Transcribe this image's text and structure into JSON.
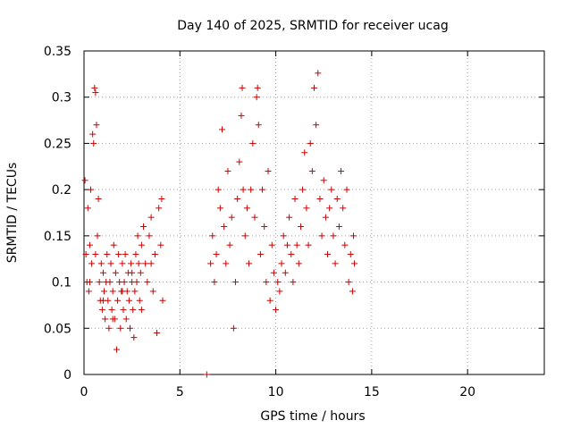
{
  "chart_data": {
    "type": "scatter",
    "title": "Day 140 of 2025, SRMTID for receiver ucag",
    "xlabel": "GPS time / hours",
    "ylabel": "SRMTID / TECUs",
    "xlim": [
      0,
      24
    ],
    "ylim": [
      0,
      0.35
    ],
    "xticks": [
      0,
      5,
      10,
      15,
      20
    ],
    "xtick_labels": [
      "0",
      "5",
      "10",
      "15",
      "20"
    ],
    "yticks": [
      0,
      0.05,
      0.1,
      0.15,
      0.2,
      0.25,
      0.3,
      0.35
    ],
    "ytick_labels": [
      "0",
      "0.05",
      "0.1",
      "0.15",
      "0.2",
      "0.25",
      "0.3",
      "0.35"
    ],
    "grid": true,
    "marker": "+",
    "color": "#cc0000",
    "series": [
      {
        "name": "SRMTID",
        "points": [
          [
            0.05,
            0.21
          ],
          [
            0.1,
            0.13
          ],
          [
            0.15,
            0.1
          ],
          [
            0.2,
            0.18
          ],
          [
            0.25,
            0.09
          ],
          [
            0.3,
            0.14
          ],
          [
            0.35,
            0.2
          ],
          [
            0.4,
            0.12
          ],
          [
            0.45,
            0.26
          ],
          [
            0.5,
            0.25
          ],
          [
            0.55,
            0.31
          ],
          [
            0.6,
            0.305
          ],
          [
            0.65,
            0.27
          ],
          [
            0.7,
            0.15
          ],
          [
            0.75,
            0.19
          ],
          [
            0.8,
            0.1
          ],
          [
            0.85,
            0.08
          ],
          [
            0.9,
            0.12
          ],
          [
            0.95,
            0.07
          ],
          [
            1.0,
            0.11
          ],
          [
            1.05,
            0.09
          ],
          [
            1.1,
            0.06
          ],
          [
            1.15,
            0.1
          ],
          [
            1.2,
            0.13
          ],
          [
            1.25,
            0.08
          ],
          [
            1.3,
            0.05
          ],
          [
            1.35,
            0.1
          ],
          [
            1.4,
            0.12
          ],
          [
            1.45,
            0.07
          ],
          [
            1.5,
            0.09
          ],
          [
            1.55,
            0.14
          ],
          [
            1.6,
            0.06
          ],
          [
            1.65,
            0.11
          ],
          [
            1.7,
            0.027
          ],
          [
            1.75,
            0.08
          ],
          [
            1.8,
            0.13
          ],
          [
            1.85,
            0.1
          ],
          [
            1.9,
            0.05
          ],
          [
            1.95,
            0.09
          ],
          [
            2.0,
            0.12
          ],
          [
            2.05,
            0.07
          ],
          [
            2.1,
            0.1
          ],
          [
            2.15,
            0.13
          ],
          [
            2.2,
            0.06
          ],
          [
            2.25,
            0.09
          ],
          [
            2.3,
            0.11
          ],
          [
            2.35,
            0.08
          ],
          [
            2.4,
            0.05
          ],
          [
            2.45,
            0.12
          ],
          [
            2.5,
            0.1
          ],
          [
            2.55,
            0.07
          ],
          [
            2.6,
            0.04
          ],
          [
            2.65,
            0.09
          ],
          [
            2.7,
            0.13
          ],
          [
            2.75,
            0.1
          ],
          [
            2.8,
            0.15
          ],
          [
            2.85,
            0.12
          ],
          [
            2.9,
            0.08
          ],
          [
            2.95,
            0.11
          ],
          [
            3.0,
            0.14
          ],
          [
            3.1,
            0.16
          ],
          [
            3.2,
            0.12
          ],
          [
            3.3,
            0.1
          ],
          [
            3.4,
            0.15
          ],
          [
            3.5,
            0.17
          ],
          [
            3.6,
            0.09
          ],
          [
            3.7,
            0.13
          ],
          [
            3.8,
            0.045
          ],
          [
            3.9,
            0.18
          ],
          [
            4.0,
            0.14
          ],
          [
            4.05,
            0.19
          ],
          [
            4.1,
            0.08
          ],
          [
            0.3,
            0.1
          ],
          [
            0.6,
            0.13
          ],
          [
            1.0,
            0.08
          ],
          [
            1.5,
            0.06
          ],
          [
            2.0,
            0.09
          ],
          [
            2.5,
            0.11
          ],
          [
            3.0,
            0.07
          ],
          [
            3.5,
            0.12
          ],
          [
            6.4,
            0.0
          ],
          [
            6.6,
            0.12
          ],
          [
            6.7,
            0.15
          ],
          [
            6.8,
            0.1
          ],
          [
            6.9,
            0.13
          ],
          [
            7.0,
            0.2
          ],
          [
            7.1,
            0.18
          ],
          [
            7.2,
            0.265
          ],
          [
            7.3,
            0.16
          ],
          [
            7.4,
            0.12
          ],
          [
            7.5,
            0.22
          ],
          [
            7.6,
            0.14
          ],
          [
            7.7,
            0.17
          ],
          [
            7.8,
            0.05
          ],
          [
            7.9,
            0.1
          ],
          [
            8.0,
            0.19
          ],
          [
            8.1,
            0.23
          ],
          [
            8.2,
            0.28
          ],
          [
            8.25,
            0.31
          ],
          [
            8.3,
            0.2
          ],
          [
            8.4,
            0.15
          ],
          [
            8.5,
            0.18
          ],
          [
            8.6,
            0.12
          ],
          [
            8.7,
            0.2
          ],
          [
            8.8,
            0.25
          ],
          [
            8.9,
            0.17
          ],
          [
            9.0,
            0.3
          ],
          [
            9.05,
            0.31
          ],
          [
            9.1,
            0.27
          ],
          [
            9.2,
            0.13
          ],
          [
            9.3,
            0.2
          ],
          [
            9.4,
            0.16
          ],
          [
            9.5,
            0.1
          ],
          [
            9.6,
            0.22
          ],
          [
            9.7,
            0.08
          ],
          [
            9.8,
            0.14
          ],
          [
            9.9,
            0.11
          ],
          [
            10.0,
            0.07
          ],
          [
            10.1,
            0.1
          ],
          [
            10.2,
            0.09
          ],
          [
            10.3,
            0.12
          ],
          [
            10.4,
            0.15
          ],
          [
            10.5,
            0.11
          ],
          [
            10.6,
            0.14
          ],
          [
            10.7,
            0.17
          ],
          [
            10.8,
            0.13
          ],
          [
            10.9,
            0.1
          ],
          [
            11.0,
            0.19
          ],
          [
            11.1,
            0.14
          ],
          [
            11.2,
            0.12
          ],
          [
            11.3,
            0.16
          ],
          [
            11.4,
            0.2
          ],
          [
            11.5,
            0.24
          ],
          [
            11.6,
            0.18
          ],
          [
            11.7,
            0.14
          ],
          [
            11.8,
            0.25
          ],
          [
            11.9,
            0.22
          ],
          [
            12.0,
            0.31
          ],
          [
            12.1,
            0.27
          ],
          [
            12.2,
            0.326
          ],
          [
            12.3,
            0.19
          ],
          [
            12.4,
            0.15
          ],
          [
            12.5,
            0.21
          ],
          [
            12.6,
            0.17
          ],
          [
            12.7,
            0.13
          ],
          [
            12.8,
            0.18
          ],
          [
            12.9,
            0.2
          ],
          [
            13.0,
            0.15
          ],
          [
            13.1,
            0.12
          ],
          [
            13.2,
            0.19
          ],
          [
            13.3,
            0.16
          ],
          [
            13.4,
            0.22
          ],
          [
            13.5,
            0.18
          ],
          [
            13.6,
            0.14
          ],
          [
            13.7,
            0.2
          ],
          [
            13.8,
            0.1
          ],
          [
            13.9,
            0.13
          ],
          [
            14.0,
            0.09
          ],
          [
            14.05,
            0.15
          ],
          [
            14.1,
            0.12
          ]
        ]
      }
    ]
  }
}
